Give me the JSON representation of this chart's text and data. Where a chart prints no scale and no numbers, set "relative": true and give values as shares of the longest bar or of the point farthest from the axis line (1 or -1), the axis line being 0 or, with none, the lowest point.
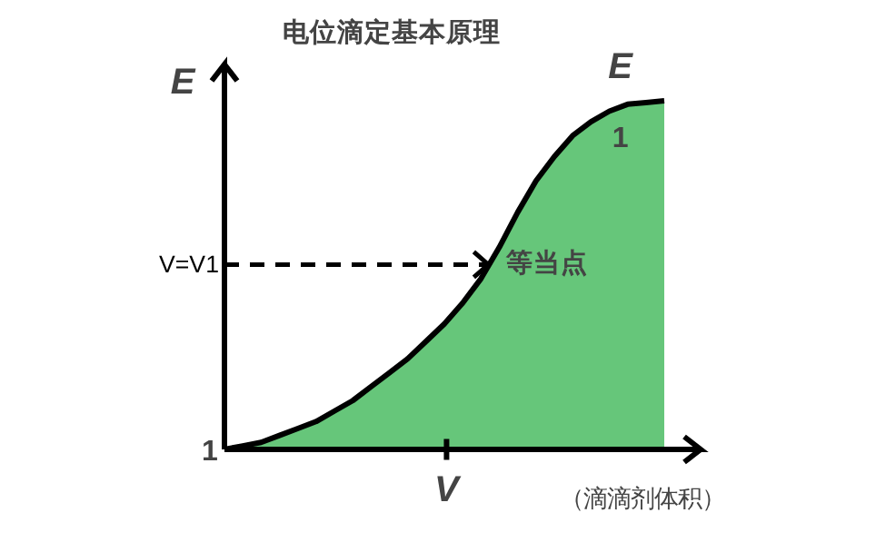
{
  "chart_data": {
    "type": "area",
    "title": "电位滴定基本原理",
    "ylabel": "E",
    "xlabel": "（滴滴剂体积）",
    "relative": true,
    "grid": false,
    "categories": [
      null,
      null,
      null,
      null,
      null,
      null,
      null,
      null,
      null,
      null,
      null,
      null,
      null,
      null,
      null,
      null,
      null,
      null,
      null,
      null,
      null,
      null,
      null,
      null,
      null
    ],
    "series": [
      {
        "color": "#66c67a",
        "values": [
          0,
          0.01,
          0.02,
          0.04,
          0.06,
          0.08,
          0.11,
          0.14,
          0.18,
          0.22,
          0.26,
          0.31,
          0.36,
          0.42,
          0.49,
          0.58,
          0.68,
          0.77,
          0.84,
          0.9,
          0.94,
          0.97,
          0.99,
          0.995,
          1
        ]
      }
    ],
    "ref_lines": [
      {
        "axis": "y",
        "value": 0.53,
        "label": "V=V1",
        "line_style": "dashed",
        "color": "#000000"
      }
    ],
    "annotations": [
      "E",
      "1",
      "1",
      "等当点",
      "V"
    ]
  }
}
